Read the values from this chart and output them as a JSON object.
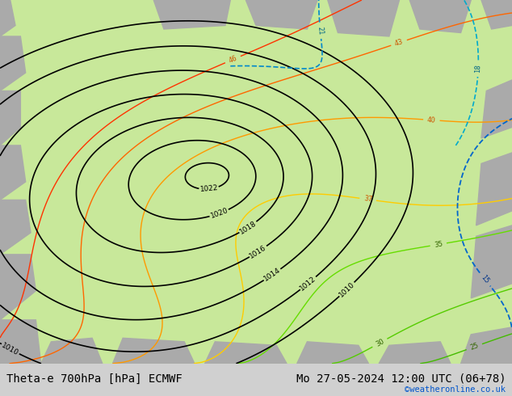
{
  "title_left": "Theta-e 700hPa [hPa] ECMWF",
  "title_right": "Mo 27-05-2024 12:00 UTC (06+78)",
  "credit": "©weatheronline.co.uk",
  "background_color": "#c8e89a",
  "bottom_bar_color": "#d0d0d0",
  "title_fontsize": 10,
  "credit_color": "#0055cc",
  "fig_width": 6.34,
  "fig_height": 4.9,
  "dpi": 100
}
